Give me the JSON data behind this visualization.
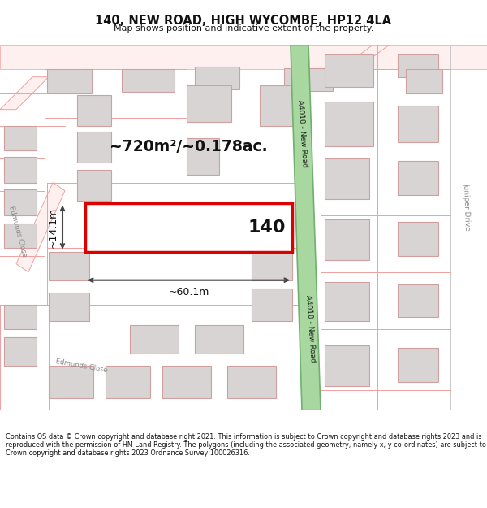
{
  "title": "140, NEW ROAD, HIGH WYCOMBE, HP12 4LA",
  "subtitle": "Map shows position and indicative extent of the property.",
  "footer": "Contains OS data © Crown copyright and database right 2021. This information is subject to Crown copyright and database rights 2023 and is reproduced with the permission of HM Land Registry. The polygons (including the associated geometry, namely x, y co-ordinates) are subject to Crown copyright and database rights 2023 Ordnance Survey 100026316.",
  "map_bg": "#ffffff",
  "road_outline": "#f0a0a0",
  "road_fill": "#ffffff",
  "building_fill": "#d8d4d4",
  "building_border": "#d0a0a0",
  "green_road_fill": "#a8d8a0",
  "green_road_border": "#70b070",
  "highlight_fill": "#ffffff",
  "highlight_border": "#dd0000",
  "area_text": "~720m²/~0.178ac.",
  "property_label": "140",
  "road_label": "A4010 - New Road",
  "left_road_label": "Edmunds Close",
  "right_road_label": "Juniper Drive",
  "dim_color": "#444444",
  "text_color": "#111111"
}
